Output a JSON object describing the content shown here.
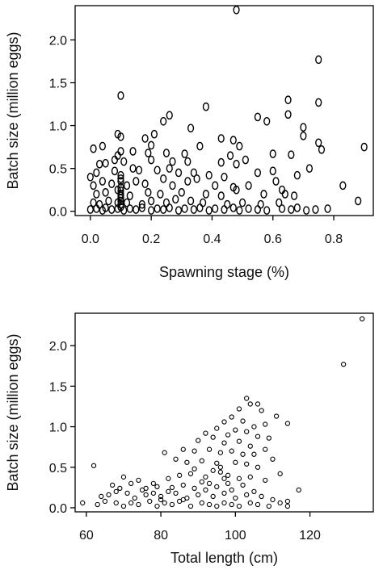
{
  "chart_data": [
    {
      "type": "scatter",
      "xlabel": "Spawning stage (%)",
      "ylabel": "Batch size (million eggs)",
      "xlim": [
        -0.05,
        0.93
      ],
      "ylim": [
        -0.05,
        2.4
      ],
      "xticks": [
        0.0,
        0.2,
        0.4,
        0.6,
        0.8
      ],
      "xtick_labels": [
        "0.0",
        "0.2",
        "0.4",
        "0.6",
        "0.8"
      ],
      "yticks": [
        0.0,
        0.5,
        1.0,
        1.5,
        2.0
      ],
      "ytick_labels": [
        "0.0",
        "0.5",
        "1.0",
        "1.5",
        "2.0"
      ],
      "marker": "ellipse",
      "grid": false,
      "points": [
        [
          0.48,
          2.35
        ],
        [
          0.75,
          1.77
        ],
        [
          0.1,
          1.35
        ],
        [
          0.75,
          1.27
        ],
        [
          0.65,
          1.3
        ],
        [
          0.38,
          1.22
        ],
        [
          0.26,
          1.12
        ],
        [
          0.55,
          1.1
        ],
        [
          0.65,
          1.13
        ],
        [
          0.58,
          1.05
        ],
        [
          0.24,
          1.05
        ],
        [
          0.33,
          0.97
        ],
        [
          0.7,
          0.98
        ],
        [
          0.09,
          0.9
        ],
        [
          0.21,
          0.9
        ],
        [
          0.1,
          0.87
        ],
        [
          0.43,
          0.85
        ],
        [
          0.47,
          0.83
        ],
        [
          0.7,
          0.88
        ],
        [
          0.18,
          0.85
        ],
        [
          0.01,
          0.73
        ],
        [
          0.04,
          0.76
        ],
        [
          0.2,
          0.77
        ],
        [
          0.36,
          0.76
        ],
        [
          0.49,
          0.76
        ],
        [
          0.76,
          0.72
        ],
        [
          0.75,
          0.8
        ],
        [
          0.9,
          0.75
        ],
        [
          0.1,
          0.7
        ],
        [
          0.09,
          0.65
        ],
        [
          0.14,
          0.7
        ],
        [
          0.19,
          0.68
        ],
        [
          0.25,
          0.68
        ],
        [
          0.31,
          0.67
        ],
        [
          0.46,
          0.65
        ],
        [
          0.6,
          0.67
        ],
        [
          0.66,
          0.66
        ],
        [
          0.03,
          0.55
        ],
        [
          0.05,
          0.56
        ],
        [
          0.08,
          0.6
        ],
        [
          0.11,
          0.58
        ],
        [
          0.2,
          0.6
        ],
        [
          0.27,
          0.58
        ],
        [
          0.32,
          0.58
        ],
        [
          0.43,
          0.57
        ],
        [
          0.48,
          0.55
        ],
        [
          0.51,
          0.6
        ],
        [
          0.0,
          0.4
        ],
        [
          0.02,
          0.45
        ],
        [
          0.08,
          0.47
        ],
        [
          0.14,
          0.5
        ],
        [
          0.16,
          0.48
        ],
        [
          0.22,
          0.48
        ],
        [
          0.26,
          0.5
        ],
        [
          0.29,
          0.45
        ],
        [
          0.34,
          0.45
        ],
        [
          0.39,
          0.42
        ],
        [
          0.44,
          0.4
        ],
        [
          0.55,
          0.45
        ],
        [
          0.6,
          0.47
        ],
        [
          0.68,
          0.42
        ],
        [
          0.72,
          0.5
        ],
        [
          0.01,
          0.3
        ],
        [
          0.04,
          0.35
        ],
        [
          0.07,
          0.32
        ],
        [
          0.1,
          0.35
        ],
        [
          0.12,
          0.3
        ],
        [
          0.15,
          0.35
        ],
        [
          0.18,
          0.32
        ],
        [
          0.24,
          0.38
        ],
        [
          0.27,
          0.3
        ],
        [
          0.32,
          0.35
        ],
        [
          0.35,
          0.38
        ],
        [
          0.41,
          0.3
        ],
        [
          0.47,
          0.28
        ],
        [
          0.52,
          0.3
        ],
        [
          0.61,
          0.35
        ],
        [
          0.63,
          0.25
        ],
        [
          0.83,
          0.3
        ],
        [
          0.02,
          0.2
        ],
        [
          0.05,
          0.22
        ],
        [
          0.09,
          0.25
        ],
        [
          0.1,
          0.2
        ],
        [
          0.13,
          0.18
        ],
        [
          0.19,
          0.22
        ],
        [
          0.23,
          0.2
        ],
        [
          0.3,
          0.22
        ],
        [
          0.38,
          0.2
        ],
        [
          0.43,
          0.18
        ],
        [
          0.48,
          0.25
        ],
        [
          0.57,
          0.2
        ],
        [
          0.64,
          0.2
        ],
        [
          0.67,
          0.18
        ],
        [
          0.01,
          0.1
        ],
        [
          0.03,
          0.08
        ],
        [
          0.06,
          0.12
        ],
        [
          0.09,
          0.1
        ],
        [
          0.1,
          0.15
        ],
        [
          0.12,
          0.1
        ],
        [
          0.17,
          0.08
        ],
        [
          0.2,
          0.12
        ],
        [
          0.25,
          0.1
        ],
        [
          0.28,
          0.14
        ],
        [
          0.33,
          0.12
        ],
        [
          0.37,
          0.1
        ],
        [
          0.45,
          0.08
        ],
        [
          0.5,
          0.1
        ],
        [
          0.56,
          0.08
        ],
        [
          0.62,
          0.1
        ],
        [
          0.0,
          0.02
        ],
        [
          0.02,
          0.03
        ],
        [
          0.04,
          0.01
        ],
        [
          0.05,
          0.04
        ],
        [
          0.07,
          0.02
        ],
        [
          0.09,
          0.03
        ],
        [
          0.1,
          0.05
        ],
        [
          0.11,
          0.01
        ],
        [
          0.13,
          0.03
        ],
        [
          0.15,
          0.02
        ],
        [
          0.17,
          0.04
        ],
        [
          0.2,
          0.01
        ],
        [
          0.22,
          0.03
        ],
        [
          0.24,
          0.02
        ],
        [
          0.26,
          0.04
        ],
        [
          0.29,
          0.01
        ],
        [
          0.31,
          0.03
        ],
        [
          0.34,
          0.02
        ],
        [
          0.36,
          0.04
        ],
        [
          0.39,
          0.01
        ],
        [
          0.41,
          0.03
        ],
        [
          0.44,
          0.02
        ],
        [
          0.47,
          0.04
        ],
        [
          0.49,
          0.01
        ],
        [
          0.52,
          0.03
        ],
        [
          0.55,
          0.02
        ],
        [
          0.58,
          0.01
        ],
        [
          0.63,
          0.03
        ],
        [
          0.66,
          0.02
        ],
        [
          0.68,
          0.04
        ],
        [
          0.71,
          0.01
        ],
        [
          0.74,
          0.02
        ],
        [
          0.78,
          0.03
        ],
        [
          0.88,
          0.12
        ],
        [
          0.1,
          0.42
        ],
        [
          0.1,
          0.28
        ],
        [
          0.1,
          0.24
        ],
        [
          0.1,
          0.18
        ],
        [
          0.1,
          0.12
        ],
        [
          0.1,
          0.08
        ],
        [
          0.1,
          0.38
        ]
      ]
    },
    {
      "type": "scatter",
      "xlabel": "Total length (cm)",
      "ylabel": "Batch size (million eggs)",
      "xlim": [
        57,
        137
      ],
      "ylim": [
        -0.05,
        2.4
      ],
      "xticks": [
        60,
        80,
        100,
        120
      ],
      "xtick_labels": [
        "60",
        "80",
        "100",
        "120"
      ],
      "yticks": [
        0.0,
        0.5,
        1.0,
        1.5,
        2.0
      ],
      "ytick_labels": [
        "0.0",
        "0.5",
        "1.0",
        "1.5",
        "2.0"
      ],
      "marker": "circle",
      "grid": false,
      "points": [
        [
          134,
          2.33
        ],
        [
          129,
          1.77
        ],
        [
          103,
          1.35
        ],
        [
          106,
          1.28
        ],
        [
          101,
          1.22
        ],
        [
          107,
          1.2
        ],
        [
          104,
          1.28
        ],
        [
          111,
          1.13
        ],
        [
          99,
          1.12
        ],
        [
          114,
          1.04
        ],
        [
          97,
          1.06
        ],
        [
          102,
          1.07
        ],
        [
          108,
          1.03
        ],
        [
          105,
          1.0
        ],
        [
          95,
          0.98
        ],
        [
          100,
          0.96
        ],
        [
          103,
          0.94
        ],
        [
          92,
          0.92
        ],
        [
          98,
          0.9
        ],
        [
          106,
          0.88
        ],
        [
          109,
          0.86
        ],
        [
          94,
          0.87
        ],
        [
          90,
          0.83
        ],
        [
          97,
          0.8
        ],
        [
          101,
          0.82
        ],
        [
          104,
          0.76
        ],
        [
          108,
          0.72
        ],
        [
          81,
          0.68
        ],
        [
          86,
          0.72
        ],
        [
          89,
          0.7
        ],
        [
          93,
          0.72
        ],
        [
          96,
          0.68
        ],
        [
          99,
          0.7
        ],
        [
          102,
          0.66
        ],
        [
          105,
          0.66
        ],
        [
          110,
          0.6
        ],
        [
          62,
          0.52
        ],
        [
          84,
          0.6
        ],
        [
          87,
          0.56
        ],
        [
          91,
          0.58
        ],
        [
          95,
          0.55
        ],
        [
          100,
          0.56
        ],
        [
          103,
          0.54
        ],
        [
          106,
          0.5
        ],
        [
          112,
          0.42
        ],
        [
          70,
          0.38
        ],
        [
          74,
          0.34
        ],
        [
          78,
          0.3
        ],
        [
          82,
          0.36
        ],
        [
          85,
          0.4
        ],
        [
          88,
          0.42
        ],
        [
          92,
          0.38
        ],
        [
          96,
          0.44
        ],
        [
          98,
          0.4
        ],
        [
          101,
          0.36
        ],
        [
          104,
          0.38
        ],
        [
          108,
          0.34
        ],
        [
          67,
          0.28
        ],
        [
          69,
          0.24
        ],
        [
          72,
          0.3
        ],
        [
          75,
          0.22
        ],
        [
          79,
          0.26
        ],
        [
          83,
          0.25
        ],
        [
          86,
          0.28
        ],
        [
          89,
          0.24
        ],
        [
          93,
          0.3
        ],
        [
          95,
          0.26
        ],
        [
          99,
          0.22
        ],
        [
          102,
          0.28
        ],
        [
          105,
          0.2
        ],
        [
          117,
          0.22
        ],
        [
          64,
          0.14
        ],
        [
          66,
          0.16
        ],
        [
          68,
          0.2
        ],
        [
          71,
          0.18
        ],
        [
          73,
          0.12
        ],
        [
          76,
          0.16
        ],
        [
          80,
          0.14
        ],
        [
          84,
          0.18
        ],
        [
          87,
          0.12
        ],
        [
          90,
          0.16
        ],
        [
          94,
          0.14
        ],
        [
          97,
          0.18
        ],
        [
          100,
          0.12
        ],
        [
          103,
          0.16
        ],
        [
          107,
          0.14
        ],
        [
          110,
          0.1
        ],
        [
          114,
          0.08
        ],
        [
          59,
          0.06
        ],
        [
          63,
          0.04
        ],
        [
          65,
          0.08
        ],
        [
          68,
          0.06
        ],
        [
          70,
          0.02
        ],
        [
          72,
          0.06
        ],
        [
          74,
          0.04
        ],
        [
          77,
          0.08
        ],
        [
          79,
          0.02
        ],
        [
          81,
          0.06
        ],
        [
          83,
          0.04
        ],
        [
          85,
          0.08
        ],
        [
          88,
          0.02
        ],
        [
          91,
          0.06
        ],
        [
          93,
          0.04
        ],
        [
          95,
          0.02
        ],
        [
          97,
          0.06
        ],
        [
          99,
          0.04
        ],
        [
          101,
          0.02
        ],
        [
          104,
          0.06
        ],
        [
          106,
          0.04
        ],
        [
          109,
          0.02
        ],
        [
          112,
          0.06
        ],
        [
          114,
          0.02
        ],
        [
          96,
          0.5
        ],
        [
          94,
          0.46
        ],
        [
          97,
          0.36
        ],
        [
          92,
          0.22
        ],
        [
          98,
          0.3
        ],
        [
          76,
          0.24
        ],
        [
          82,
          0.2
        ],
        [
          89,
          0.48
        ],
        [
          91,
          0.32
        ],
        [
          86,
          0.1
        ],
        [
          78,
          0.18
        ],
        [
          80,
          0.1
        ]
      ]
    }
  ]
}
